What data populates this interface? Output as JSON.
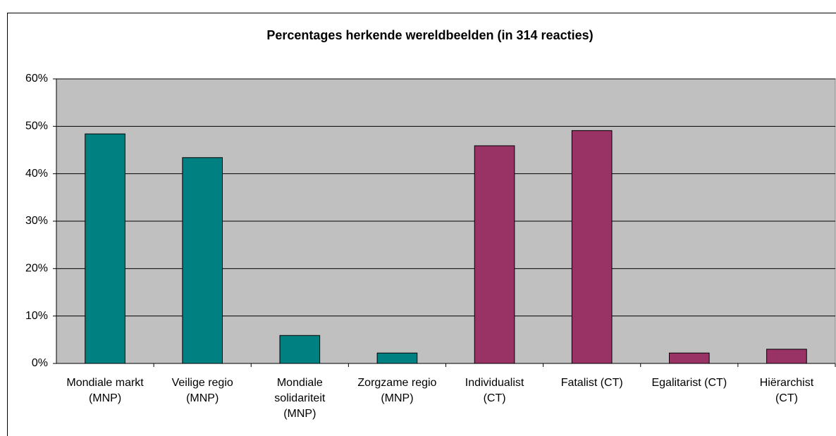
{
  "chart_data": {
    "type": "bar",
    "title": "Percentages herkende wereldbeelden (in 314 reacties)",
    "categories": [
      "Mondiale markt\n(MNP)",
      "Veilige regio\n(MNP)",
      "Mondiale\nsolidariteit\n(MNP)",
      "Zorgzame regio\n(MNP)",
      "Individualist\n(CT)",
      "Fatalist (CT)",
      "Egalitarist (CT)",
      "Hiërarchist\n(CT)"
    ],
    "values": [
      48.4,
      43.4,
      5.9,
      2.2,
      45.9,
      49.1,
      2.2,
      3.0
    ],
    "colors": [
      "#008080",
      "#008080",
      "#008080",
      "#008080",
      "#993366",
      "#993366",
      "#993366",
      "#993366"
    ],
    "ylim": [
      0,
      60
    ],
    "yticks": [
      {
        "value": 0,
        "label": "0%"
      },
      {
        "value": 10,
        "label": "10%"
      },
      {
        "value": 20,
        "label": "20%"
      },
      {
        "value": 30,
        "label": "30%"
      },
      {
        "value": 40,
        "label": "40%"
      },
      {
        "value": 50,
        "label": "50%"
      },
      {
        "value": 60,
        "label": "60%"
      }
    ],
    "grid": true,
    "plot_background": "#c0c0c0"
  }
}
